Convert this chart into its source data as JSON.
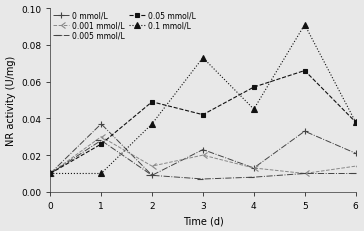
{
  "x": [
    0,
    1,
    2,
    3,
    4,
    5,
    6
  ],
  "series": [
    {
      "label": "0 mmol/L",
      "y": [
        0.01,
        0.037,
        0.009,
        0.023,
        0.013,
        0.033,
        0.021
      ],
      "color": "#444444",
      "linestyle": "-.",
      "marker": "+",
      "markersize": 4,
      "linewidth": 0.7,
      "fillstyle": "none",
      "dashes": [
        3,
        2,
        1,
        2
      ]
    },
    {
      "label": "0.001 mmol/L",
      "y": [
        0.01,
        0.03,
        0.014,
        0.02,
        0.013,
        0.01,
        0.014
      ],
      "color": "#888888",
      "linestyle": "--",
      "marker": 4,
      "markersize": 4,
      "linewidth": 0.7,
      "fillstyle": "none",
      "dashes": [
        4,
        2
      ]
    },
    {
      "label": "0.005 mmol/L",
      "y": [
        0.01,
        0.028,
        0.009,
        0.007,
        0.008,
        0.01,
        0.01
      ],
      "color": "#444444",
      "linestyle": "-.",
      "marker": 0,
      "markersize": 4,
      "linewidth": 0.7,
      "fillstyle": "none",
      "dashes": [
        6,
        2,
        1,
        2
      ]
    },
    {
      "label": "0.05 mmol/L",
      "y": [
        0.01,
        0.026,
        0.049,
        0.042,
        0.057,
        0.066,
        0.038
      ],
      "color": "#111111",
      "linestyle": "--",
      "marker": "s",
      "markersize": 3.5,
      "linewidth": 0.8,
      "fillstyle": "full",
      "dashes": [
        4,
        2
      ]
    },
    {
      "label": "0.1 mmol/L",
      "y": [
        0.01,
        0.01,
        0.037,
        0.073,
        0.045,
        0.091,
        0.038
      ],
      "color": "#111111",
      "linestyle": ":",
      "marker": "^",
      "markersize": 4.5,
      "linewidth": 0.8,
      "fillstyle": "full",
      "dashes": null
    }
  ],
  "xlabel": "Time (d)",
  "ylabel": "NR activity (U/mg)",
  "ylim": [
    0.0,
    0.1
  ],
  "xlim": [
    0,
    6
  ],
  "yticks": [
    0.0,
    0.02,
    0.04,
    0.06,
    0.08,
    0.1
  ],
  "ytick_labels": [
    "0.00",
    "0.02",
    "0.04",
    "0.06",
    "0.08",
    "0.10"
  ],
  "xticks": [
    0,
    1,
    2,
    3,
    4,
    5,
    6
  ],
  "background_color": "#e8e8e8",
  "legend_fontsize": 5.5,
  "axis_fontsize": 7,
  "tick_fontsize": 6.5
}
